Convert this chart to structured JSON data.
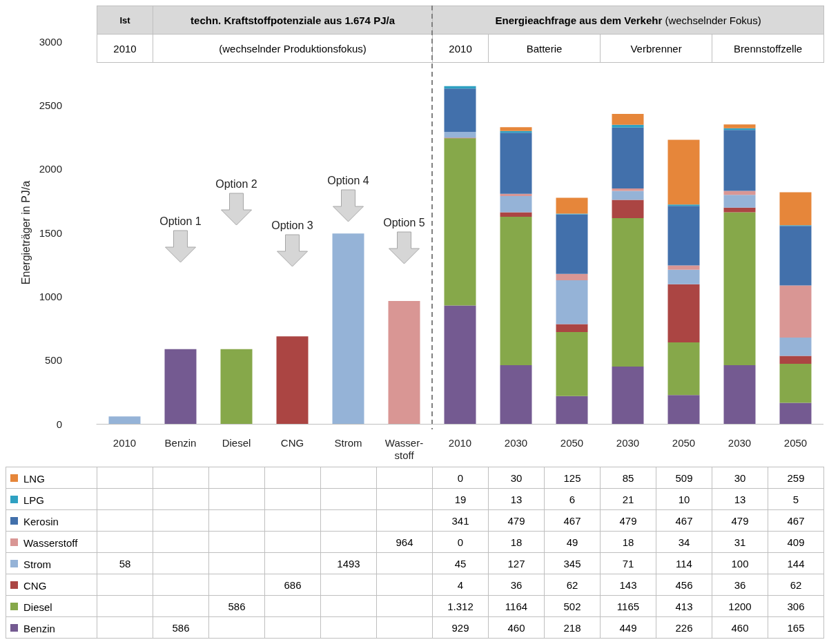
{
  "chart_data": {
    "type": "bar",
    "stacked": true,
    "ylabel": "Energieträger in PJ/a",
    "ylim": [
      0,
      3000
    ],
    "yticks": [
      0,
      500,
      1000,
      1500,
      2000,
      2500,
      3000
    ],
    "grid": false,
    "legend": "bottom left",
    "categories": [
      "2010",
      "Benzin",
      "Diesel",
      "CNG",
      "Strom",
      "Wasser-\nstoff",
      "2010",
      "2030",
      "2050",
      "2030",
      "2050",
      "2030",
      "2050"
    ],
    "annotations": [
      "Ist",
      "techn. Kraftstoffpotenziale aus 1.674 PJ/a",
      "Energieachfrage aus dem Verkehr",
      "(wechselnder Fokus)",
      "2010",
      "(wechselnder Produktionsfokus)",
      "2010",
      "Batterie",
      "Verbrenner",
      "Brennstoffzelle",
      "Option 1",
      "Option 2",
      "Option 3",
      "Option 4",
      "Option 5"
    ],
    "series": [
      {
        "name": "Benzin",
        "color": "#745a91",
        "values": [
          null,
          586,
          null,
          null,
          null,
          null,
          929,
          460,
          218,
          449,
          226,
          460,
          165
        ],
        "value_labels": [
          null,
          "586",
          null,
          null,
          null,
          null,
          "929",
          "460",
          "218",
          "449",
          "226",
          "460",
          "165"
        ]
      },
      {
        "name": "Diesel",
        "color": "#86a84a",
        "values": [
          null,
          null,
          586,
          null,
          null,
          null,
          1312,
          1164,
          502,
          1165,
          413,
          1200,
          306
        ],
        "value_labels": [
          null,
          null,
          "586",
          null,
          null,
          null,
          "1.312",
          "1164",
          "502",
          "1165",
          "413",
          "1200",
          "306"
        ]
      },
      {
        "name": "CNG",
        "color": "#ab4543",
        "values": [
          null,
          null,
          null,
          686,
          null,
          null,
          4,
          36,
          62,
          143,
          456,
          36,
          62
        ],
        "value_labels": [
          null,
          null,
          null,
          "686",
          null,
          null,
          "4",
          "36",
          "62",
          "143",
          "456",
          "36",
          "62"
        ]
      },
      {
        "name": "Strom",
        "color": "#95b3d7",
        "values": [
          58,
          null,
          null,
          null,
          1493,
          null,
          45,
          127,
          345,
          71,
          114,
          100,
          144
        ],
        "value_labels": [
          "58",
          null,
          null,
          null,
          "1493",
          null,
          "45",
          "127",
          "345",
          "71",
          "114",
          "100",
          "144"
        ]
      },
      {
        "name": "Wasserstoff",
        "color": "#d99694",
        "values": [
          null,
          null,
          null,
          null,
          null,
          964,
          0,
          18,
          49,
          18,
          34,
          31,
          409
        ],
        "value_labels": [
          null,
          null,
          null,
          null,
          null,
          "964",
          "0",
          "18",
          "49",
          "18",
          "34",
          "31",
          "409"
        ]
      },
      {
        "name": "Kerosin",
        "color": "#4270ab",
        "values": [
          null,
          null,
          null,
          null,
          null,
          null,
          341,
          479,
          467,
          479,
          467,
          479,
          467
        ],
        "value_labels": [
          null,
          null,
          null,
          null,
          null,
          null,
          "341",
          "479",
          "467",
          "479",
          "467",
          "479",
          "467"
        ]
      },
      {
        "name": "LPG",
        "color": "#2fa1c2",
        "values": [
          null,
          null,
          null,
          null,
          null,
          null,
          19,
          13,
          6,
          21,
          10,
          13,
          5
        ],
        "value_labels": [
          null,
          null,
          null,
          null,
          null,
          null,
          "19",
          "13",
          "6",
          "21",
          "10",
          "13",
          "5"
        ]
      },
      {
        "name": "LNG",
        "color": "#e6863a",
        "values": [
          null,
          null,
          null,
          null,
          null,
          null,
          0,
          30,
          125,
          85,
          509,
          30,
          259
        ],
        "value_labels": [
          null,
          null,
          null,
          null,
          null,
          null,
          "0",
          "30",
          "125",
          "85",
          "509",
          "30",
          "259"
        ]
      }
    ]
  }
}
